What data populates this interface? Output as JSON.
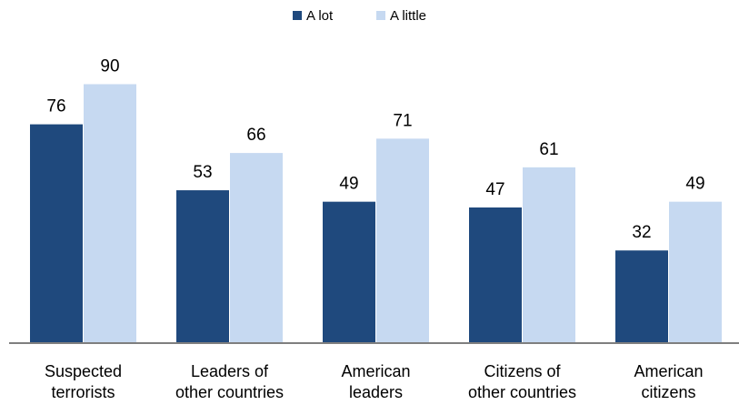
{
  "chart_data": {
    "type": "bar",
    "categories": [
      [
        "Suspected",
        "terrorists"
      ],
      [
        "Leaders of",
        "other countries"
      ],
      [
        "American",
        "leaders"
      ],
      [
        "Citizens of",
        "other countries"
      ],
      [
        "American",
        "citizens"
      ]
    ],
    "series": [
      {
        "name": "A lot",
        "color": "#1f497d",
        "values": [
          76,
          53,
          49,
          47,
          32
        ]
      },
      {
        "name": "A little",
        "color": "#c6d9f1",
        "values": [
          90,
          66,
          71,
          61,
          49
        ]
      }
    ],
    "ylim": [
      0,
      100
    ],
    "grid": false,
    "legend_position": "top-center",
    "axis_color": "#7f7f7f"
  }
}
